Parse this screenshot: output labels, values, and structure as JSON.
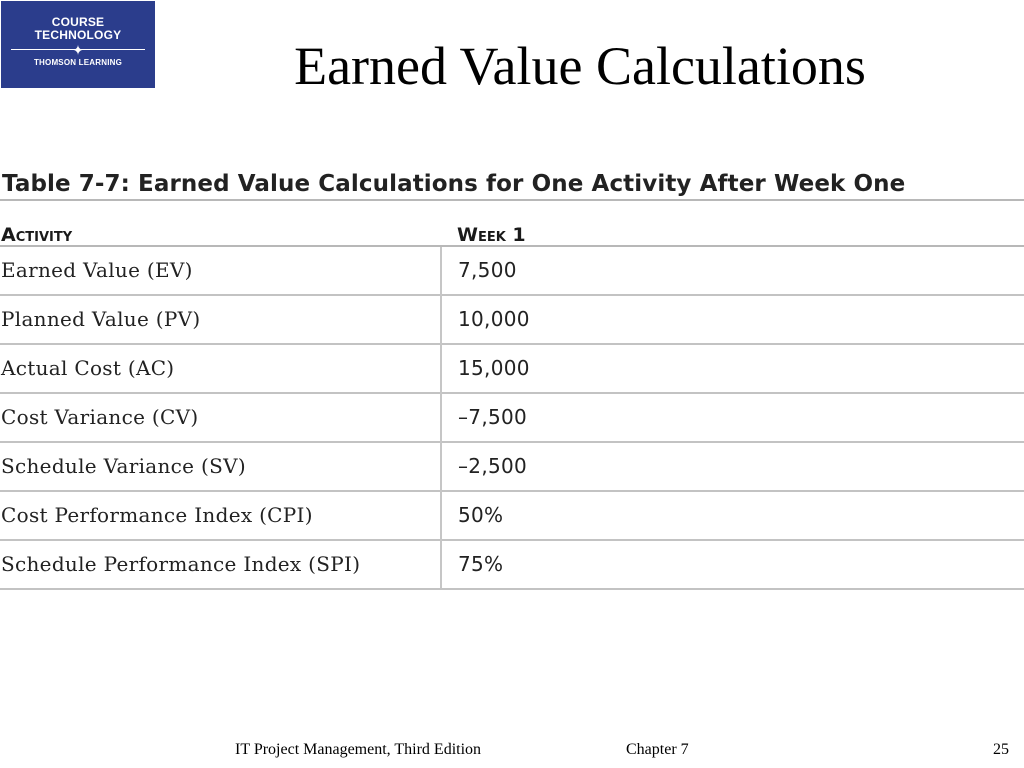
{
  "logo": {
    "line1": "COURSE",
    "line2": "TECHNOLOGY",
    "line3": "THOMSON LEARNING",
    "star_glyph": "✦",
    "background_color": "#2b3d8c"
  },
  "slide_title": "Earned Value Calculations",
  "table": {
    "caption": "Table 7-7: Earned Value Calculations for One Activity After Week One",
    "headers": {
      "activity": "Activity",
      "week": "Week 1"
    },
    "rows": [
      {
        "name": "Earned Value (EV)",
        "value": "7,500"
      },
      {
        "name": "Planned Value (PV)",
        "value": "10,000"
      },
      {
        "name": "Actual Cost (AC)",
        "value": "15,000"
      },
      {
        "name": "Cost Variance (CV)",
        "value": "–7,500"
      },
      {
        "name": "Schedule Variance (SV)",
        "value": "–2,500"
      },
      {
        "name": "Cost Performance Index (CPI)",
        "value": "50%"
      },
      {
        "name": "Schedule Performance Index (SPI)",
        "value": "75%"
      }
    ]
  },
  "footer": {
    "book": "IT Project Management, Third Edition",
    "chapter": "Chapter 7",
    "page": "25"
  }
}
